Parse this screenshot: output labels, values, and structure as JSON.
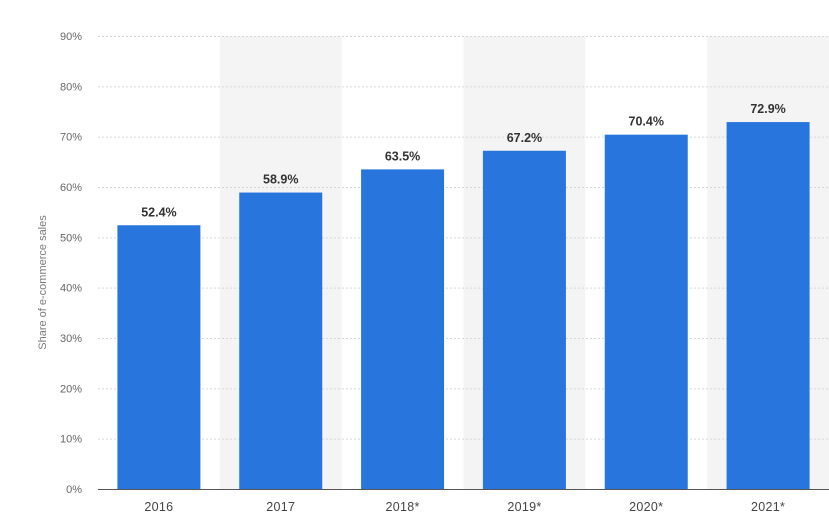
{
  "chart_data": {
    "type": "bar",
    "categories": [
      "2016",
      "2017",
      "2018*",
      "2019*",
      "2020*",
      "2021*"
    ],
    "values": [
      52.4,
      58.9,
      63.5,
      67.2,
      70.4,
      72.9
    ],
    "value_labels": [
      "52.4%",
      "58.9%",
      "63.5%",
      "67.2%",
      "70.4%",
      "72.9%"
    ],
    "ylabel": "Share of e-commerce sales",
    "ylim": [
      0,
      90
    ],
    "yticks": [
      0,
      10,
      20,
      30,
      40,
      50,
      60,
      70,
      80,
      90
    ],
    "ytick_labels": [
      "0%",
      "10%",
      "20%",
      "30%",
      "40%",
      "50%",
      "60%",
      "70%",
      "80%",
      "90%"
    ],
    "grid": true,
    "bar_color": "#2876dd",
    "alternate_band_color": "#f4f4f4"
  }
}
